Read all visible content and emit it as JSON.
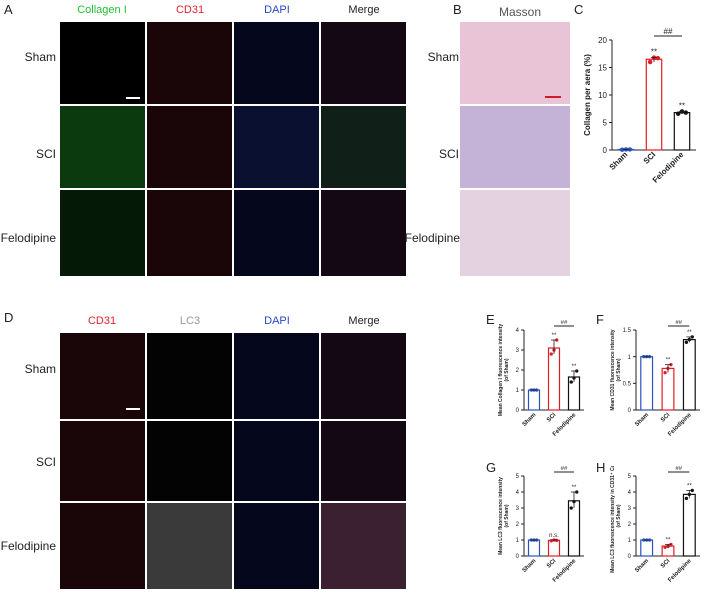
{
  "panels": {
    "A": "A",
    "B": "B",
    "C": "C",
    "D": "D",
    "E": "E",
    "F": "F",
    "G": "G",
    "H": "H"
  },
  "panelA": {
    "channels": [
      "Collagen I",
      "CD31",
      "DAPI",
      "Merge"
    ],
    "rows": [
      "Sham",
      "SCI",
      "Felodipine"
    ]
  },
  "panelB": {
    "title": "Masson",
    "rows": [
      "Sham",
      "SCI",
      "Felodipine"
    ]
  },
  "panelD": {
    "channels": [
      "CD31",
      "LC3",
      "DAPI",
      "Merge"
    ],
    "rows": [
      "Sham",
      "SCI",
      "Felodipine"
    ]
  },
  "colors": {
    "green": "#1fbf2f",
    "red": "#e0242a",
    "blue": "#2747c8",
    "gray": "#999999",
    "sham": "#2a52be",
    "sci": "#e31d25",
    "felodipine": "#111111"
  },
  "chart_data": [
    {
      "id": "C",
      "type": "bar",
      "categories": [
        "Sham",
        "SCI",
        "Felodipine"
      ],
      "values": [
        0.1,
        16.5,
        6.8
      ],
      "ylabel": "Collagen per aera (%)",
      "ylim": [
        0,
        20
      ],
      "yticks": [
        0,
        5,
        10,
        15,
        20
      ],
      "points": [
        [
          0.05,
          0.1,
          0.1
        ],
        [
          16.0,
          16.8,
          16.7
        ],
        [
          6.6,
          7.0,
          6.8
        ]
      ],
      "stars": [
        "",
        "**",
        "**"
      ],
      "bracket": {
        "from": 1,
        "to": 2,
        "label": "##"
      }
    },
    {
      "id": "E",
      "type": "bar",
      "categories": [
        "Sham",
        "SCI",
        "Felodipine"
      ],
      "values": [
        1.0,
        3.1,
        1.65
      ],
      "ylabel": "Mean Collagen I fluorescence intensity (of Sham)",
      "ylim": [
        0,
        4
      ],
      "yticks": [
        0,
        1,
        2,
        3,
        4
      ],
      "points": [
        [
          1,
          1,
          1
        ],
        [
          2.8,
          3.0,
          3.5
        ],
        [
          1.4,
          1.6,
          1.95
        ]
      ],
      "stars": [
        "",
        "**",
        "**"
      ],
      "bracket": {
        "from": 1,
        "to": 2,
        "label": "##"
      }
    },
    {
      "id": "F",
      "type": "bar",
      "categories": [
        "Sham",
        "SCI",
        "Felodipine"
      ],
      "values": [
        1.0,
        0.78,
        1.32
      ],
      "ylabel": "Mean CD31 fluorescence intensity (of Sham)",
      "ylim": [
        0,
        1.5
      ],
      "yticks": [
        0.0,
        0.5,
        1.0,
        1.5
      ],
      "points": [
        [
          1,
          1,
          1
        ],
        [
          0.7,
          0.78,
          0.85
        ],
        [
          1.27,
          1.32,
          1.37
        ]
      ],
      "stars": [
        "",
        "**",
        "**"
      ],
      "bracket": {
        "from": 1,
        "to": 2,
        "label": "##"
      }
    },
    {
      "id": "G",
      "type": "bar",
      "categories": [
        "Sham",
        "SCI",
        "Felodipine"
      ],
      "values": [
        1.0,
        0.98,
        3.45
      ],
      "ylabel": "Mean LC3 fluorescence intensity (of Sham)",
      "ylim": [
        0,
        5
      ],
      "yticks": [
        0,
        1,
        2,
        3,
        4,
        5
      ],
      "points": [
        [
          1,
          1,
          1
        ],
        [
          0.95,
          1.0,
          0.98
        ],
        [
          3.0,
          3.4,
          4.0
        ]
      ],
      "stars": [
        "",
        "n.s.",
        "**"
      ],
      "bracket": {
        "from": 1,
        "to": 2,
        "label": "##"
      }
    },
    {
      "id": "H",
      "type": "bar",
      "categories": [
        "Sham",
        "SCI",
        "Felodipine"
      ],
      "values": [
        1.0,
        0.62,
        3.85
      ],
      "ylabel": "Mean LC3 fluorescence intensity in CD31⁺ Cells (of Sham)",
      "ylim": [
        0,
        5
      ],
      "yticks": [
        0,
        1,
        2,
        3,
        4,
        5
      ],
      "points": [
        [
          1,
          1,
          1
        ],
        [
          0.55,
          0.6,
          0.72
        ],
        [
          3.6,
          3.85,
          4.1
        ]
      ],
      "stars": [
        "",
        "**",
        "**"
      ],
      "bracket": {
        "from": 1,
        "to": 2,
        "label": "##"
      }
    }
  ]
}
